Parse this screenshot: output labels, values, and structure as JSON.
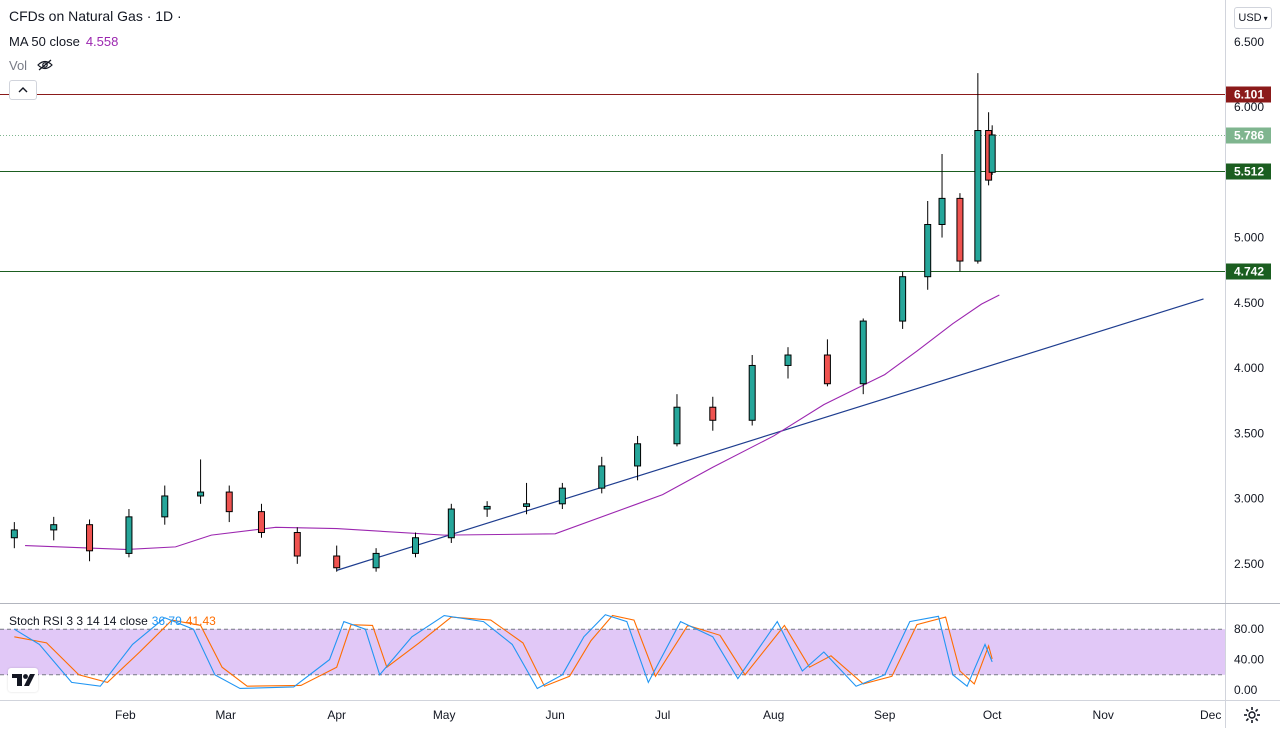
{
  "header": {
    "symbol_title": "CFDs on Natural Gas · 1D ·",
    "ma_label": "MA 50 close",
    "ma_value": "4.558",
    "vol_label": "Vol",
    "currency": "USD"
  },
  "stoch": {
    "label": "Stoch RSI 3 3 14 14 close",
    "k_value": "36.79",
    "d_value": "41.43"
  },
  "colors": {
    "up": "#26a69a",
    "down": "#ef5350",
    "candle_body": "#000000",
    "ma": "#9c27b0",
    "trendline": "#1e3d8f",
    "resistance": "#8b1a1a",
    "support": "#1b5e20",
    "last_price": "#7fb58f",
    "stoch_k": "#2196f3",
    "stoch_d": "#ff6d00",
    "stoch_band": "#e1c8f7"
  },
  "chart_data": {
    "type": "candlestick",
    "x_labels": [
      "Feb",
      "Mar",
      "Apr",
      "May",
      "Jun",
      "Jul",
      "Aug",
      "Sep",
      "Oct",
      "Nov",
      "Dec"
    ],
    "price_axis": {
      "ticks": [
        2.5,
        3.0,
        3.5,
        4.0,
        4.5,
        5.0,
        5.5,
        6.0,
        6.5
      ],
      "tick_labels": [
        "2.500",
        "3.000",
        "3.500",
        "4.000",
        "4.500",
        "5.000",
        "5.500",
        "6.000",
        "6.500"
      ],
      "range": [
        2.2,
        6.82
      ]
    },
    "horizontal_levels": [
      {
        "value": 6.101,
        "label": "6.101",
        "kind": "resistance"
      },
      {
        "value": 5.512,
        "label": "5.512",
        "kind": "support"
      },
      {
        "value": 4.742,
        "label": "4.742",
        "kind": "support"
      }
    ],
    "last_price": {
      "value": 5.786,
      "label": "5.786"
    },
    "trendline": {
      "from": {
        "date": "2021-04-01",
        "value": 2.45
      },
      "to": {
        "date": "2021-11-29",
        "value": 4.53
      }
    },
    "ma50_path": [
      [
        "2021-01-04",
        2.64
      ],
      [
        "2021-02-01",
        2.61
      ],
      [
        "2021-02-15",
        2.63
      ],
      [
        "2021-02-25",
        2.72
      ],
      [
        "2021-03-15",
        2.78
      ],
      [
        "2021-04-01",
        2.77
      ],
      [
        "2021-05-01",
        2.72
      ],
      [
        "2021-06-01",
        2.73
      ],
      [
        "2021-07-01",
        3.03
      ],
      [
        "2021-07-15",
        3.24
      ],
      [
        "2021-08-01",
        3.48
      ],
      [
        "2021-08-15",
        3.72
      ],
      [
        "2021-09-01",
        3.95
      ],
      [
        "2021-09-10",
        4.13
      ],
      [
        "2021-09-20",
        4.34
      ],
      [
        "2021-09-28",
        4.49
      ],
      [
        "2021-10-03",
        4.56
      ]
    ],
    "candles": [
      {
        "d": "2021-01-01",
        "o": 2.7,
        "h": 2.82,
        "l": 2.62,
        "c": 2.76
      },
      {
        "d": "2021-01-12",
        "o": 2.76,
        "h": 2.86,
        "l": 2.68,
        "c": 2.8
      },
      {
        "d": "2021-01-22",
        "o": 2.8,
        "h": 2.84,
        "l": 2.52,
        "c": 2.6
      },
      {
        "d": "2021-02-02",
        "o": 2.58,
        "h": 2.92,
        "l": 2.55,
        "c": 2.86
      },
      {
        "d": "2021-02-12",
        "o": 2.86,
        "h": 3.1,
        "l": 2.8,
        "c": 3.02
      },
      {
        "d": "2021-02-22",
        "o": 3.02,
        "h": 3.3,
        "l": 2.96,
        "c": 3.05
      },
      {
        "d": "2021-03-02",
        "o": 3.05,
        "h": 3.1,
        "l": 2.82,
        "c": 2.9
      },
      {
        "d": "2021-03-11",
        "o": 2.9,
        "h": 2.96,
        "l": 2.7,
        "c": 2.74
      },
      {
        "d": "2021-03-21",
        "o": 2.74,
        "h": 2.78,
        "l": 2.5,
        "c": 2.56
      },
      {
        "d": "2021-04-01",
        "o": 2.56,
        "h": 2.64,
        "l": 2.44,
        "c": 2.47
      },
      {
        "d": "2021-04-12",
        "o": 2.47,
        "h": 2.62,
        "l": 2.44,
        "c": 2.58
      },
      {
        "d": "2021-04-23",
        "o": 2.58,
        "h": 2.74,
        "l": 2.55,
        "c": 2.7
      },
      {
        "d": "2021-05-03",
        "o": 2.7,
        "h": 2.96,
        "l": 2.66,
        "c": 2.92
      },
      {
        "d": "2021-05-13",
        "o": 2.92,
        "h": 2.98,
        "l": 2.86,
        "c": 2.94
      },
      {
        "d": "2021-05-24",
        "o": 2.94,
        "h": 3.12,
        "l": 2.88,
        "c": 2.96
      },
      {
        "d": "2021-06-03",
        "o": 2.96,
        "h": 3.12,
        "l": 2.92,
        "c": 3.08
      },
      {
        "d": "2021-06-14",
        "o": 3.08,
        "h": 3.32,
        "l": 3.04,
        "c": 3.25
      },
      {
        "d": "2021-06-24",
        "o": 3.25,
        "h": 3.48,
        "l": 3.14,
        "c": 3.42
      },
      {
        "d": "2021-07-05",
        "o": 3.42,
        "h": 3.8,
        "l": 3.4,
        "c": 3.7
      },
      {
        "d": "2021-07-15",
        "o": 3.7,
        "h": 3.78,
        "l": 3.52,
        "c": 3.6
      },
      {
        "d": "2021-07-26",
        "o": 3.6,
        "h": 4.1,
        "l": 3.56,
        "c": 4.02
      },
      {
        "d": "2021-08-05",
        "o": 4.02,
        "h": 4.16,
        "l": 3.92,
        "c": 4.1
      },
      {
        "d": "2021-08-16",
        "o": 4.1,
        "h": 4.22,
        "l": 3.86,
        "c": 3.88
      },
      {
        "d": "2021-08-26",
        "o": 3.88,
        "h": 4.38,
        "l": 3.8,
        "c": 4.36
      },
      {
        "d": "2021-09-06",
        "o": 4.36,
        "h": 4.74,
        "l": 4.3,
        "c": 4.7
      },
      {
        "d": "2021-09-13",
        "o": 4.7,
        "h": 5.28,
        "l": 4.6,
        "c": 5.1
      },
      {
        "d": "2021-09-17",
        "o": 5.1,
        "h": 5.64,
        "l": 5.0,
        "c": 5.3
      },
      {
        "d": "2021-09-22",
        "o": 5.3,
        "h": 5.34,
        "l": 4.74,
        "c": 4.82
      },
      {
        "d": "2021-09-27",
        "o": 4.82,
        "h": 6.26,
        "l": 4.8,
        "c": 5.82
      },
      {
        "d": "2021-09-30",
        "o": 5.82,
        "h": 5.96,
        "l": 5.4,
        "c": 5.44
      },
      {
        "d": "2021-10-01",
        "o": 5.5,
        "h": 5.86,
        "l": 5.48,
        "c": 5.786
      }
    ],
    "stoch_rsi": {
      "axis_ticks": [
        0,
        40,
        80
      ],
      "tick_labels": [
        "0.00",
        "40.00",
        "80.00"
      ],
      "upper_band": 80,
      "lower_band": 20,
      "k_series": [
        [
          "2021-01-01",
          80
        ],
        [
          "2021-01-08",
          60
        ],
        [
          "2021-01-17",
          10
        ],
        [
          "2021-01-25",
          5
        ],
        [
          "2021-02-03",
          60
        ],
        [
          "2021-02-12",
          95
        ],
        [
          "2021-02-20",
          80
        ],
        [
          "2021-02-26",
          20
        ],
        [
          "2021-03-05",
          2
        ],
        [
          "2021-03-20",
          4
        ],
        [
          "2021-03-30",
          40
        ],
        [
          "2021-04-03",
          90
        ],
        [
          "2021-04-09",
          80
        ],
        [
          "2021-04-13",
          20
        ],
        [
          "2021-04-22",
          70
        ],
        [
          "2021-05-01",
          98
        ],
        [
          "2021-05-12",
          90
        ],
        [
          "2021-05-20",
          60
        ],
        [
          "2021-05-27",
          2
        ],
        [
          "2021-06-03",
          20
        ],
        [
          "2021-06-09",
          70
        ],
        [
          "2021-06-15",
          99
        ],
        [
          "2021-06-21",
          90
        ],
        [
          "2021-06-27",
          10
        ],
        [
          "2021-07-06",
          90
        ],
        [
          "2021-07-15",
          70
        ],
        [
          "2021-07-22",
          15
        ],
        [
          "2021-08-02",
          90
        ],
        [
          "2021-08-09",
          25
        ],
        [
          "2021-08-15",
          50
        ],
        [
          "2021-08-24",
          5
        ],
        [
          "2021-09-01",
          20
        ],
        [
          "2021-09-08",
          90
        ],
        [
          "2021-09-16",
          97
        ],
        [
          "2021-09-20",
          20
        ],
        [
          "2021-09-24",
          5
        ],
        [
          "2021-09-29",
          60
        ],
        [
          "2021-10-01",
          37
        ]
      ],
      "d_series": [
        [
          "2021-01-01",
          70
        ],
        [
          "2021-01-10",
          62
        ],
        [
          "2021-01-19",
          20
        ],
        [
          "2021-01-27",
          10
        ],
        [
          "2021-02-05",
          50
        ],
        [
          "2021-02-14",
          92
        ],
        [
          "2021-02-22",
          85
        ],
        [
          "2021-02-28",
          30
        ],
        [
          "2021-03-07",
          5
        ],
        [
          "2021-03-22",
          6
        ],
        [
          "2021-04-01",
          30
        ],
        [
          "2021-04-05",
          86
        ],
        [
          "2021-04-11",
          85
        ],
        [
          "2021-04-15",
          30
        ],
        [
          "2021-04-24",
          62
        ],
        [
          "2021-05-03",
          96
        ],
        [
          "2021-05-14",
          92
        ],
        [
          "2021-05-23",
          62
        ],
        [
          "2021-05-29",
          5
        ],
        [
          "2021-06-05",
          18
        ],
        [
          "2021-06-11",
          65
        ],
        [
          "2021-06-17",
          98
        ],
        [
          "2021-06-23",
          92
        ],
        [
          "2021-06-29",
          18
        ],
        [
          "2021-07-08",
          85
        ],
        [
          "2021-07-17",
          72
        ],
        [
          "2021-07-24",
          20
        ],
        [
          "2021-08-04",
          85
        ],
        [
          "2021-08-11",
          30
        ],
        [
          "2021-08-17",
          45
        ],
        [
          "2021-08-26",
          8
        ],
        [
          "2021-09-03",
          18
        ],
        [
          "2021-09-10",
          86
        ],
        [
          "2021-09-18",
          96
        ],
        [
          "2021-09-22",
          25
        ],
        [
          "2021-09-26",
          8
        ],
        [
          "2021-09-30",
          58
        ],
        [
          "2021-10-01",
          41
        ]
      ]
    }
  }
}
